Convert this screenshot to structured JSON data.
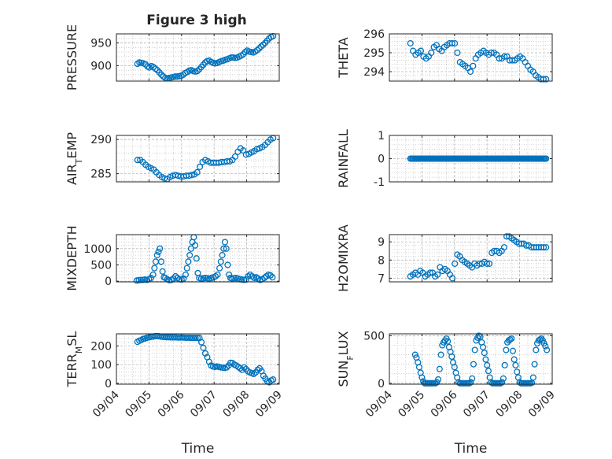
{
  "figure_title": "Figure 3 high",
  "colors": {
    "marker": "#0072BD",
    "axis": "#262626",
    "grid": "#b8b8b8",
    "background": "#ffffff"
  },
  "x_axis": {
    "ticks": [
      "09/04",
      "09/05",
      "09/06",
      "09/07",
      "09/08",
      "09/09"
    ],
    "label": "Time"
  },
  "chart_data": [
    {
      "type": "scatter",
      "ylabel": "PRESSURE",
      "grid": true,
      "xlim": [
        "09/04",
        "09/09"
      ],
      "ylim": [
        866,
        970
      ],
      "yticks": [
        900,
        950
      ],
      "x_start": "09/04 15:30",
      "x_end": "09/08 19:30",
      "y": [
        904,
        907,
        906,
        905,
        903,
        898,
        896,
        899,
        897,
        893,
        890,
        885,
        880,
        876,
        873,
        872,
        873,
        874,
        875,
        876,
        876,
        877,
        878,
        880,
        884,
        886,
        889,
        890,
        888,
        887,
        888,
        892,
        897,
        902,
        907,
        910,
        911,
        908,
        906,
        905,
        906,
        908,
        910,
        911,
        913,
        914,
        916,
        918,
        918,
        917,
        918,
        920,
        922,
        925,
        930,
        933,
        931,
        930,
        929,
        931,
        934,
        938,
        942,
        946,
        950,
        955,
        960,
        963,
        965
      ]
    },
    {
      "type": "scatter",
      "ylabel": "THETA",
      "grid": true,
      "xlim": [
        "09/04",
        "09/09"
      ],
      "ylim": [
        293.5,
        296
      ],
      "yticks": [
        294,
        295,
        296
      ],
      "x_start": "09/04 15:30",
      "x_end": "09/08 19:30",
      "y": [
        295.5,
        295.1,
        294.9,
        295.0,
        295.1,
        294.8,
        294.7,
        294.8,
        295.0,
        295.3,
        295.4,
        295.2,
        295.1,
        295.3,
        295.4,
        295.5,
        295.5,
        295.5,
        295.0,
        294.5,
        294.4,
        294.3,
        294.2,
        294.0,
        294.3,
        294.7,
        294.9,
        295.0,
        295.1,
        295.0,
        294.9,
        295.0,
        295.0,
        294.9,
        294.7,
        294.7,
        294.8,
        294.8,
        294.6,
        294.6,
        294.6,
        294.7,
        294.8,
        294.7,
        294.5,
        294.3,
        294.1,
        294.0,
        293.8,
        293.7,
        293.6,
        293.6,
        293.6
      ]
    },
    {
      "type": "scatter",
      "ylabel": "AIR_TEMP",
      "grid": true,
      "xlim": [
        "09/04",
        "09/09"
      ],
      "ylim": [
        283.8,
        290.6
      ],
      "yticks": [
        285,
        290
      ],
      "x_start": "09/04 15:30",
      "x_end": "09/08 19:30",
      "y": [
        287.0,
        287.0,
        286.7,
        286.3,
        286.0,
        285.8,
        285.6,
        285.2,
        284.8,
        284.5,
        284.3,
        284.2,
        284.5,
        284.7,
        284.8,
        284.7,
        284.6,
        284.6,
        284.7,
        284.7,
        284.8,
        284.9,
        285.2,
        286.0,
        286.7,
        287.0,
        286.8,
        286.6,
        286.6,
        286.6,
        286.6,
        286.7,
        286.7,
        286.8,
        286.8,
        287.0,
        287.5,
        288.2,
        288.7,
        288.4,
        287.8,
        287.9,
        288.1,
        288.3,
        288.6,
        288.7,
        288.9,
        289.2,
        289.6,
        290.0,
        290.2
      ]
    },
    {
      "type": "scatter",
      "ylabel": "RAINFALL",
      "grid": true,
      "xlim": [
        "09/04",
        "09/09"
      ],
      "ylim": [
        -1,
        1
      ],
      "yticks": [
        -1,
        0,
        1
      ],
      "x_start": "09/04 15:30",
      "x_end": "09/08 19:30",
      "constant_value": 0,
      "count": 120
    },
    {
      "type": "scatter",
      "ylabel": "MIXDEPTH",
      "grid": true,
      "xlim": [
        "09/04",
        "09/09"
      ],
      "ylim": [
        -20,
        1430
      ],
      "yticks": [
        0,
        500,
        1000
      ],
      "x": [
        "09/04 15:00",
        "09/04 16:30",
        "09/04 18:00",
        "09/04 19:30",
        "09/04 21:00",
        "09/04 22:30",
        "09/05 00:00",
        "09/05 01:30",
        "09/05 03:00",
        "09/05 04:00",
        "09/05 05:00",
        "09/05 06:00",
        "09/05 07:00",
        "09/05 08:00",
        "09/05 09:00",
        "09/05 10:00",
        "09/05 11:00",
        "09/05 12:00",
        "09/05 13:30",
        "09/05 15:00",
        "09/05 16:30",
        "09/05 18:00",
        "09/05 19:30",
        "09/05 21:00",
        "09/05 22:30",
        "09/06 00:00",
        "09/06 01:30",
        "09/06 03:00",
        "09/06 04:00",
        "09/06 05:00",
        "09/06 06:00",
        "09/06 07:00",
        "09/06 08:00",
        "09/06 09:00",
        "09/06 10:00",
        "09/06 11:00",
        "09/06 12:00",
        "09/06 13:00",
        "09/06 14:30",
        "09/06 16:00",
        "09/06 17:30",
        "09/06 19:00",
        "09/06 20:30",
        "09/06 22:00",
        "09/06 23:30",
        "09/07 01:00",
        "09/07 02:30",
        "09/07 04:00",
        "09/07 05:00",
        "09/07 06:00",
        "09/07 07:00",
        "09/07 08:00",
        "09/07 09:00",
        "09/07 10:00",
        "09/07 11:00",
        "09/07 12:00",
        "09/07 13:00",
        "09/07 14:30",
        "09/07 16:00",
        "09/07 17:30",
        "09/07 19:00",
        "09/07 20:30",
        "09/07 22:00",
        "09/07 23:30",
        "09/08 01:00",
        "09/08 02:30",
        "09/08 04:00",
        "09/08 05:30",
        "09/08 07:00",
        "09/08 08:30",
        "09/08 10:00",
        "09/08 11:30",
        "09/08 13:00",
        "09/08 14:30",
        "09/08 16:00",
        "09/08 17:30",
        "09/08 19:00"
      ],
      "y": [
        20,
        30,
        40,
        40,
        50,
        40,
        60,
        100,
        200,
        400,
        600,
        800,
        900,
        1000,
        600,
        300,
        120,
        100,
        60,
        30,
        40,
        80,
        150,
        100,
        60,
        50,
        80,
        200,
        400,
        600,
        800,
        1000,
        1200,
        1350,
        1100,
        700,
        250,
        100,
        80,
        90,
        100,
        90,
        80,
        100,
        120,
        150,
        200,
        400,
        600,
        800,
        1000,
        1200,
        1000,
        500,
        200,
        100,
        80,
        90,
        100,
        80,
        60,
        50,
        40,
        50,
        150,
        200,
        150,
        100,
        120,
        80,
        40,
        60,
        100,
        150,
        200,
        180,
        120
      ]
    },
    {
      "type": "scatter",
      "ylabel": "H2OMIXRA",
      "grid": true,
      "xlim": [
        "09/04",
        "09/09"
      ],
      "ylim": [
        6.8,
        9.4
      ],
      "yticks": [
        7,
        8,
        9
      ],
      "x_start": "09/04 15:30",
      "x_end": "09/08 19:30",
      "y": [
        7.1,
        7.2,
        7.3,
        7.2,
        7.4,
        7.3,
        7.1,
        7.2,
        7.3,
        7.3,
        7.1,
        7.2,
        7.6,
        7.4,
        7.5,
        7.4,
        7.2,
        7.0,
        7.8,
        8.3,
        8.2,
        8.0,
        7.9,
        7.8,
        7.7,
        7.6,
        7.8,
        7.7,
        7.8,
        7.8,
        7.9,
        7.8,
        7.8,
        8.4,
        8.5,
        8.5,
        8.4,
        8.5,
        8.7,
        9.3,
        9.3,
        9.2,
        9.1,
        9.0,
        8.9,
        8.9,
        8.9,
        8.8,
        8.8,
        8.7,
        8.7,
        8.7,
        8.7,
        8.7,
        8.7,
        8.7
      ]
    },
    {
      "type": "scatter",
      "ylabel": "TERR_MSL",
      "grid": true,
      "xlim": [
        "09/04",
        "09/09"
      ],
      "ylim": [
        -5,
        265
      ],
      "yticks": [
        0,
        100,
        200
      ],
      "x_start": "09/04 15:30",
      "x_end": "09/08 19:30",
      "y": [
        222,
        228,
        232,
        238,
        240,
        244,
        246,
        249,
        250,
        252,
        253,
        252,
        250,
        249,
        248,
        247,
        247,
        246,
        246,
        246,
        246,
        245,
        245,
        245,
        245,
        244,
        244,
        244,
        243,
        243,
        243,
        243,
        243,
        220,
        190,
        160,
        140,
        115,
        95,
        90,
        88,
        90,
        88,
        85,
        84,
        82,
        85,
        95,
        110,
        108,
        100,
        95,
        88,
        80,
        72,
        85,
        76,
        64,
        58,
        54,
        50,
        58,
        72,
        80,
        65,
        40,
        25,
        10,
        5,
        15,
        20
      ]
    },
    {
      "type": "scatter",
      "ylabel": "SUN_FLUX",
      "grid": true,
      "xlim": [
        "09/04",
        "09/09"
      ],
      "ylim": [
        -10,
        520
      ],
      "yticks": [
        0,
        500
      ],
      "x": [
        "09/04 19:00",
        "09/04 20:00",
        "09/04 21:00",
        "09/04 22:00",
        "09/04 23:00",
        "09/05 00:00",
        "09/05 01:00",
        "09/05 02:00",
        "09/05 03:00",
        "09/05 04:00",
        "09/05 05:00",
        "09/05 06:00",
        "09/05 07:00",
        "09/05 08:00",
        "09/05 09:00",
        "09/05 10:00",
        "09/05 11:00",
        "09/05 12:00",
        "09/05 13:00",
        "09/05 14:00",
        "09/05 15:00",
        "09/05 16:00",
        "09/05 17:00",
        "09/05 18:00",
        "09/05 19:00",
        "09/05 20:00",
        "09/05 21:00",
        "09/05 22:00",
        "09/05 23:00",
        "09/06 00:00",
        "09/06 01:00",
        "09/06 02:00",
        "09/06 03:00",
        "09/06 04:00",
        "09/06 05:00",
        "09/06 06:00",
        "09/06 07:00",
        "09/06 08:00",
        "09/06 09:00",
        "09/06 10:00",
        "09/06 11:00",
        "09/06 12:00",
        "09/06 13:00",
        "09/06 14:00",
        "09/06 15:00",
        "09/06 16:00",
        "09/06 17:00",
        "09/06 18:00",
        "09/06 19:00",
        "09/06 20:00",
        "09/06 21:00",
        "09/06 22:00",
        "09/06 23:00",
        "09/07 00:00",
        "09/07 01:00",
        "09/07 02:00",
        "09/07 03:00",
        "09/07 04:00",
        "09/07 05:00",
        "09/07 06:00",
        "09/07 07:00",
        "09/07 08:00",
        "09/07 09:00",
        "09/07 10:00",
        "09/07 11:00",
        "09/07 12:00",
        "09/07 13:00",
        "09/07 14:00",
        "09/07 15:00",
        "09/07 16:00",
        "09/07 17:00",
        "09/07 18:00",
        "09/07 19:00",
        "09/07 20:00",
        "09/07 21:00",
        "09/07 22:00",
        "09/07 23:00",
        "09/08 00:00",
        "09/08 01:00",
        "09/08 02:00",
        "09/08 03:00",
        "09/08 04:00",
        "09/08 05:00",
        "09/08 06:00",
        "09/08 07:00",
        "09/08 08:00",
        "09/08 09:00",
        "09/08 10:00",
        "09/08 11:00",
        "09/08 12:00",
        "09/08 13:00",
        "09/08 14:00",
        "09/08 15:00",
        "09/08 16:00",
        "09/08 17:00",
        "09/08 18:00",
        "09/08 19:00",
        "09/08 20:00"
      ],
      "y": [
        300,
        270,
        220,
        170,
        110,
        60,
        20,
        0,
        0,
        0,
        0,
        0,
        0,
        0,
        0,
        0,
        10,
        40,
        150,
        300,
        400,
        430,
        450,
        470,
        440,
        380,
        330,
        280,
        220,
        170,
        110,
        60,
        10,
        0,
        0,
        0,
        0,
        0,
        0,
        0,
        0,
        10,
        50,
        200,
        350,
        450,
        480,
        500,
        490,
        430,
        380,
        320,
        250,
        190,
        130,
        60,
        10,
        0,
        0,
        0,
        0,
        0,
        0,
        0,
        10,
        50,
        190,
        350,
        430,
        450,
        460,
        470,
        340,
        250,
        190,
        120,
        60,
        10,
        0,
        0,
        0,
        0,
        0,
        0,
        0,
        0,
        5,
        60,
        200,
        350,
        420,
        450,
        460,
        470,
        450,
        420,
        390,
        350
      ]
    }
  ]
}
